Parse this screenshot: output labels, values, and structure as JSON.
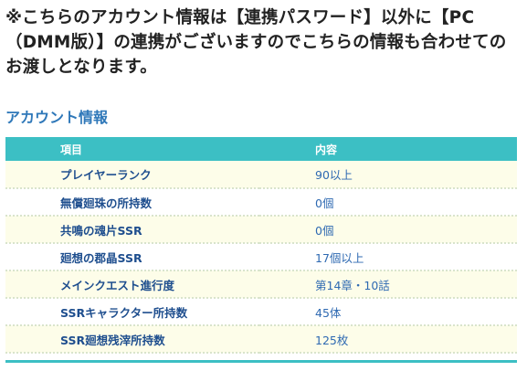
{
  "notice": {
    "text": "※こちらのアカウント情報は【連携パスワード】以外に【PC（DMM版）】の連携がございますのでこちらの情報も合わせてのお渡しとなります。"
  },
  "section": {
    "title": "アカウント情報"
  },
  "table": {
    "headers": [
      "項目",
      "内容"
    ],
    "rows": [
      {
        "item": "プレイヤーランク",
        "value": "90以上"
      },
      {
        "item": "無償廻珠の所持数",
        "value": "0個"
      },
      {
        "item": "共鳴の魂片SSR",
        "value": "0個"
      },
      {
        "item": "廻想の郡晶SSR",
        "value": "17個以上"
      },
      {
        "item": "メインクエスト進行度",
        "value": "第14章・10話"
      },
      {
        "item": "SSRキャラクター所持数",
        "value": "45体"
      },
      {
        "item": "SSR廻想残滓所持数",
        "value": "125枚"
      }
    ]
  },
  "colors": {
    "header_bg": "#3cbfc4",
    "title": "#2f78b9",
    "row_alt_bg": "#fdfde9"
  }
}
